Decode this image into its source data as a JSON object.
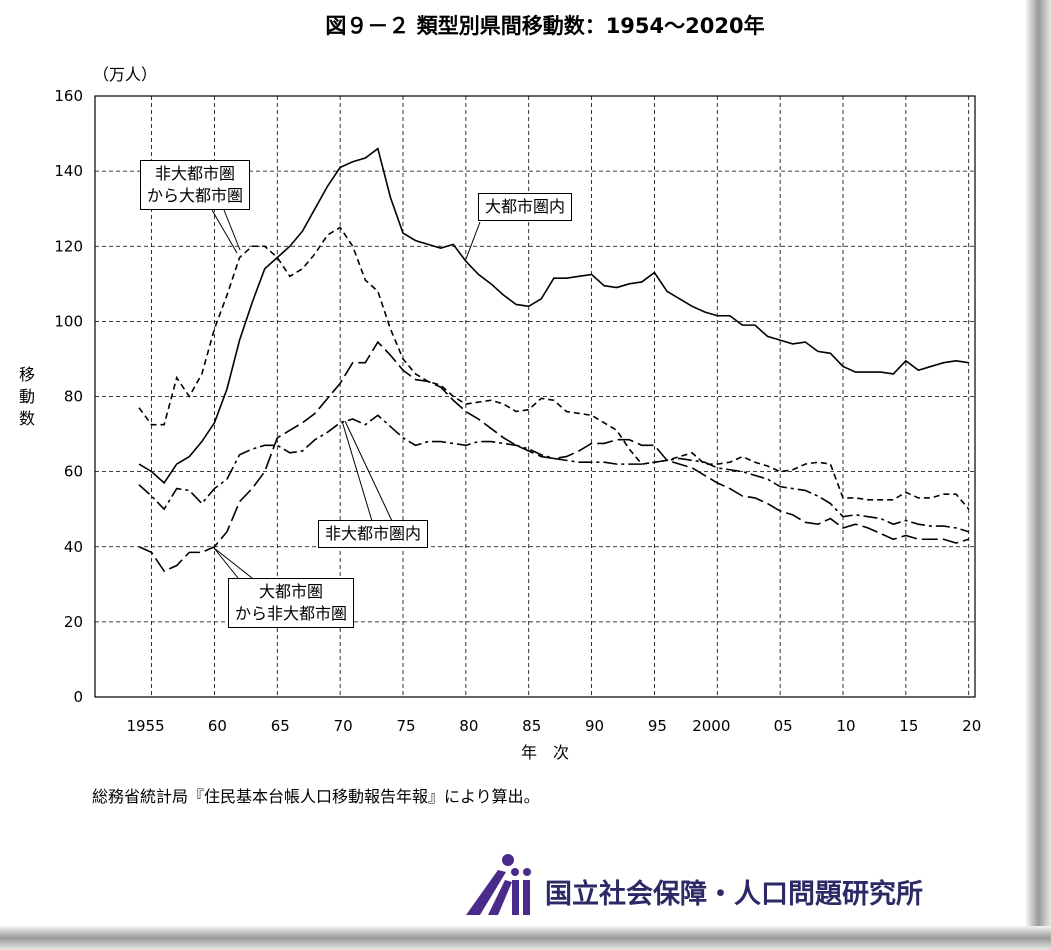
{
  "chart_data": {
    "type": "line",
    "title": "図９－２ 類型別県間移動数：1954～2020年",
    "y_unit": "（万人）",
    "y_label": "移動数",
    "x_label": "年　次",
    "source": "総務省統計局『住民基本台帳人口移動報告年報』により算出。",
    "organization": "国立社会保障・人口問題研究所",
    "x": [
      1954,
      1955,
      1956,
      1957,
      1958,
      1959,
      1960,
      1961,
      1962,
      1963,
      1964,
      1965,
      1966,
      1967,
      1968,
      1969,
      1970,
      1971,
      1972,
      1973,
      1974,
      1975,
      1976,
      1977,
      1978,
      1979,
      1980,
      1981,
      1982,
      1983,
      1984,
      1985,
      1986,
      1987,
      1988,
      1989,
      1990,
      1991,
      1992,
      1993,
      1994,
      1995,
      1996,
      1997,
      1998,
      1999,
      2000,
      2001,
      2002,
      2003,
      2004,
      2005,
      2006,
      2007,
      2008,
      2009,
      2010,
      2011,
      2012,
      2013,
      2014,
      2015,
      2016,
      2017,
      2018,
      2019,
      2020
    ],
    "xlim": [
      1950.5,
      2020.5
    ],
    "xticks": [
      1955,
      {
        "value": 1960,
        "label": "60"
      },
      {
        "value": 1965,
        "label": "65"
      },
      {
        "value": 1970,
        "label": "70"
      },
      {
        "value": 1975,
        "label": "75"
      },
      {
        "value": 1980,
        "label": "80"
      },
      {
        "value": 1985,
        "label": "85"
      },
      {
        "value": 1990,
        "label": "90"
      },
      {
        "value": 1995,
        "label": "95"
      },
      2000,
      {
        "value": 2005,
        "label": "05"
      },
      {
        "value": 2010,
        "label": "10"
      },
      {
        "value": 2015,
        "label": "15"
      },
      {
        "value": 2020,
        "label": "20"
      }
    ],
    "ylim": [
      0,
      160
    ],
    "yticks": [
      0,
      20,
      40,
      60,
      80,
      100,
      120,
      140,
      160
    ],
    "grid": true,
    "series": [
      {
        "name": "大都市圏内",
        "color": "#000000",
        "style": "solid",
        "values": [
          62,
          60,
          57,
          62,
          64,
          68,
          73,
          82,
          95,
          105,
          114,
          117,
          120,
          124,
          130,
          136,
          141,
          142.5,
          143.5,
          146,
          133,
          123.5,
          121.5,
          120.5,
          119.5,
          120.5,
          116,
          112.5,
          110,
          107,
          104.5,
          104,
          106,
          111.5,
          111.5,
          112,
          112.5,
          109.5,
          109,
          110,
          110.5,
          113,
          108,
          106,
          104,
          102.5,
          101.5,
          101.5,
          99,
          99,
          96,
          95,
          94,
          94.5,
          92,
          91.5,
          88,
          86.5,
          86.5,
          86.5,
          86,
          89.5,
          87,
          88,
          89,
          89.5,
          89
        ]
      },
      {
        "name": "非大都市圏\nから大都市圏",
        "color": "#000000",
        "style": "dashed",
        "values": [
          77,
          72.5,
          72.5,
          85,
          80,
          86,
          98,
          107,
          117,
          120,
          120,
          117,
          112,
          114,
          118,
          123,
          125,
          120,
          111,
          108,
          98,
          90,
          86,
          84,
          83,
          80,
          78,
          78.5,
          79,
          78,
          76,
          76.5,
          79.5,
          79,
          76,
          75.5,
          75,
          73,
          71,
          66,
          62,
          62.5,
          63,
          64,
          65,
          62,
          62,
          62.5,
          64,
          62.5,
          61.5,
          60,
          60.5,
          62,
          62.5,
          62,
          53,
          53,
          52.5,
          52.5,
          52.5,
          54.5,
          53,
          53,
          54,
          54,
          50
        ]
      },
      {
        "name": "非大都市圏内",
        "color": "#000000",
        "style": "dashdot",
        "values": [
          56.5,
          53.5,
          50,
          55.5,
          55,
          51.5,
          55.5,
          58,
          64.5,
          66,
          67,
          67,
          65,
          65.5,
          68.5,
          70.5,
          73,
          74,
          72.5,
          75,
          72,
          69,
          67,
          68,
          68,
          67.5,
          67,
          68,
          68,
          67.5,
          67,
          66,
          64.5,
          63.5,
          63,
          62.5,
          62.5,
          62.5,
          62,
          62,
          62,
          62.5,
          63,
          63.5,
          63,
          62.5,
          61,
          60.5,
          60,
          59,
          58,
          56,
          55.5,
          55,
          53.5,
          51.5,
          48,
          48.5,
          48,
          47.5,
          46,
          47,
          46,
          45.5,
          45.5,
          45,
          44
        ]
      },
      {
        "name": "大都市圏\nから非大都市圏",
        "color": "#000000",
        "style": "longdash",
        "values": [
          40,
          38.5,
          33.5,
          35,
          38.5,
          38.5,
          40,
          44,
          52,
          55.5,
          60,
          69,
          71,
          73,
          75.5,
          79.5,
          83.5,
          89,
          89,
          94.5,
          91,
          87,
          84.5,
          84,
          82.5,
          79,
          76,
          74,
          71.5,
          69,
          67,
          65.5,
          64,
          63.5,
          64,
          65.5,
          67.5,
          67.5,
          68.5,
          68.5,
          67,
          67,
          63,
          62,
          61,
          59,
          57,
          55.5,
          53.5,
          53,
          51.5,
          49.5,
          48.5,
          46.5,
          46,
          47.5,
          45,
          46,
          45,
          43.5,
          42,
          43,
          42,
          42,
          42,
          41,
          42
        ]
      }
    ]
  }
}
